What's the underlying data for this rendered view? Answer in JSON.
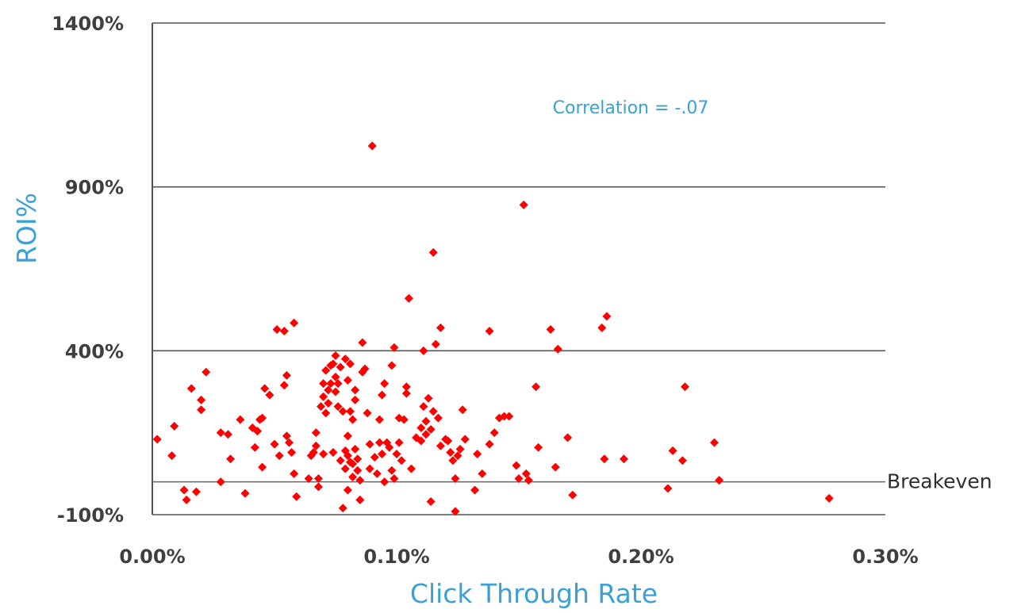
{
  "chart_data": {
    "type": "scatter",
    "title": "",
    "xlabel": "Click Through Rate",
    "ylabel": "ROI%",
    "xlim": [
      0.0,
      0.3
    ],
    "ylim": [
      -100,
      1400
    ],
    "x_ticks": [
      "0.00%",
      "0.10%",
      "0.20%",
      "0.30%"
    ],
    "y_ticks": [
      "1400%",
      "900%",
      "400%",
      "-100%"
    ],
    "grid": "horizontal",
    "legend": "none",
    "annotations": {
      "correlation": "Correlation = -.07",
      "breakeven": "Breakeven"
    },
    "breakeven_y": 0,
    "point_color": "#ff0000",
    "series": [
      {
        "points": [
          [
            0.002,
            130
          ],
          [
            0.008,
            80
          ],
          [
            0.009,
            170
          ],
          [
            0.013,
            -25
          ],
          [
            0.014,
            -55
          ],
          [
            0.016,
            285
          ],
          [
            0.018,
            -30
          ],
          [
            0.02,
            220
          ],
          [
            0.02,
            250
          ],
          [
            0.022,
            335
          ],
          [
            0.028,
            150
          ],
          [
            0.028,
            0
          ],
          [
            0.031,
            145
          ],
          [
            0.032,
            70
          ],
          [
            0.036,
            190
          ],
          [
            0.038,
            -35
          ],
          [
            0.041,
            165
          ],
          [
            0.042,
            105
          ],
          [
            0.043,
            155
          ],
          [
            0.044,
            190
          ],
          [
            0.045,
            195
          ],
          [
            0.045,
            45
          ],
          [
            0.046,
            285
          ],
          [
            0.048,
            265
          ],
          [
            0.05,
            115
          ],
          [
            0.051,
            465
          ],
          [
            0.052,
            80
          ],
          [
            0.054,
            460
          ],
          [
            0.054,
            295
          ],
          [
            0.055,
            325
          ],
          [
            0.055,
            140
          ],
          [
            0.056,
            120
          ],
          [
            0.057,
            90
          ],
          [
            0.058,
            485
          ],
          [
            0.058,
            25
          ],
          [
            0.059,
            -45
          ],
          [
            0.064,
            10
          ],
          [
            0.065,
            80
          ],
          [
            0.066,
            90
          ],
          [
            0.067,
            150
          ],
          [
            0.067,
            110
          ],
          [
            0.068,
            10
          ],
          [
            0.068,
            -15
          ],
          [
            0.069,
            230
          ],
          [
            0.07,
            260
          ],
          [
            0.07,
            85
          ],
          [
            0.07,
            300
          ],
          [
            0.071,
            340
          ],
          [
            0.071,
            210
          ],
          [
            0.072,
            240
          ],
          [
            0.072,
            280
          ],
          [
            0.073,
            355
          ],
          [
            0.073,
            300
          ],
          [
            0.074,
            360
          ],
          [
            0.074,
            90
          ],
          [
            0.075,
            275
          ],
          [
            0.075,
            320
          ],
          [
            0.075,
            385
          ],
          [
            0.076,
            300
          ],
          [
            0.076,
            230
          ],
          [
            0.077,
            65
          ],
          [
            0.077,
            350
          ],
          [
            0.078,
            -80
          ],
          [
            0.078,
            215
          ],
          [
            0.079,
            40
          ],
          [
            0.079,
            95
          ],
          [
            0.079,
            375
          ],
          [
            0.08,
            -25
          ],
          [
            0.08,
            140
          ],
          [
            0.08,
            310
          ],
          [
            0.08,
            80
          ],
          [
            0.081,
            215
          ],
          [
            0.081,
            360
          ],
          [
            0.081,
            60
          ],
          [
            0.082,
            55
          ],
          [
            0.082,
            15
          ],
          [
            0.082,
            190
          ],
          [
            0.083,
            250
          ],
          [
            0.083,
            280
          ],
          [
            0.083,
            100
          ],
          [
            0.084,
            70
          ],
          [
            0.084,
            35
          ],
          [
            0.085,
            5
          ],
          [
            0.085,
            -55
          ],
          [
            0.086,
            425
          ],
          [
            0.086,
            335
          ],
          [
            0.087,
            345
          ],
          [
            0.088,
            210
          ],
          [
            0.089,
            40
          ],
          [
            0.089,
            115
          ],
          [
            0.09,
            1025
          ],
          [
            0.091,
            75
          ],
          [
            0.092,
            25
          ],
          [
            0.093,
            120
          ],
          [
            0.093,
            190
          ],
          [
            0.094,
            265
          ],
          [
            0.094,
            85
          ],
          [
            0.095,
            300
          ],
          [
            0.095,
            0
          ],
          [
            0.096,
            120
          ],
          [
            0.097,
            105
          ],
          [
            0.098,
            355
          ],
          [
            0.098,
            35
          ],
          [
            0.099,
            410
          ],
          [
            0.099,
            10
          ],
          [
            0.1,
            85
          ],
          [
            0.101,
            120
          ],
          [
            0.101,
            195
          ],
          [
            0.102,
            65
          ],
          [
            0.103,
            190
          ],
          [
            0.104,
            290
          ],
          [
            0.104,
            270
          ],
          [
            0.105,
            560
          ],
          [
            0.106,
            40
          ],
          [
            0.108,
            135
          ],
          [
            0.11,
            125
          ],
          [
            0.11,
            165
          ],
          [
            0.111,
            400
          ],
          [
            0.111,
            230
          ],
          [
            0.112,
            145
          ],
          [
            0.112,
            185
          ],
          [
            0.113,
            255
          ],
          [
            0.114,
            -60
          ],
          [
            0.114,
            160
          ],
          [
            0.115,
            215
          ],
          [
            0.115,
            700
          ],
          [
            0.116,
            420
          ],
          [
            0.117,
            195
          ],
          [
            0.118,
            470
          ],
          [
            0.118,
            110
          ],
          [
            0.12,
            130
          ],
          [
            0.121,
            125
          ],
          [
            0.122,
            90
          ],
          [
            0.123,
            65
          ],
          [
            0.124,
            -90
          ],
          [
            0.124,
            10
          ],
          [
            0.125,
            80
          ],
          [
            0.126,
            100
          ],
          [
            0.127,
            220
          ],
          [
            0.128,
            130
          ],
          [
            0.132,
            -25
          ],
          [
            0.133,
            85
          ],
          [
            0.135,
            25
          ],
          [
            0.138,
            115
          ],
          [
            0.138,
            460
          ],
          [
            0.14,
            150
          ],
          [
            0.142,
            195
          ],
          [
            0.144,
            200
          ],
          [
            0.146,
            200
          ],
          [
            0.149,
            50
          ],
          [
            0.15,
            10
          ],
          [
            0.152,
            845
          ],
          [
            0.153,
            25
          ],
          [
            0.154,
            5
          ],
          [
            0.157,
            290
          ],
          [
            0.158,
            105
          ],
          [
            0.163,
            465
          ],
          [
            0.165,
            45
          ],
          [
            0.166,
            405
          ],
          [
            0.17,
            135
          ],
          [
            0.172,
            -40
          ],
          [
            0.184,
            470
          ],
          [
            0.185,
            70
          ],
          [
            0.186,
            505
          ],
          [
            0.193,
            70
          ],
          [
            0.211,
            -20
          ],
          [
            0.213,
            95
          ],
          [
            0.217,
            65
          ],
          [
            0.218,
            290
          ],
          [
            0.23,
            120
          ],
          [
            0.232,
            5
          ],
          [
            0.277,
            -50
          ]
        ]
      }
    ]
  }
}
